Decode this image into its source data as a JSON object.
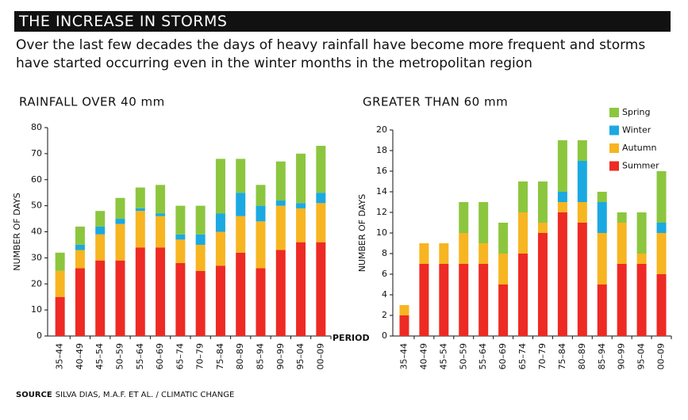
{
  "title": "THE INCREASE IN STORMS",
  "subtitle": "Over the last few decades the days of heavy rainfall have become more frequent and storms have started occurring even in the winter months in the metropolitan region",
  "source_label": "SOURCE",
  "source": "SILVA DIAS, M.A.F. ET AL.  / CLIMATIC CHANGE",
  "chart_data": [
    {
      "type": "bar",
      "stacked": true,
      "title": "RAINFALL OVER 40 mm",
      "y_label": "NUMBER OF DAYS",
      "x_label": "PERIOD",
      "categories": [
        "35–44",
        "40–49",
        "45–54",
        "50–59",
        "55–64",
        "60–69",
        "65–74",
        "70–79",
        "75–84",
        "80–89",
        "85–94",
        "90–99",
        "95–04",
        "00–09"
      ],
      "series": [
        {
          "name": "Summer",
          "color": "#ee2a24",
          "values": [
            15,
            26,
            29,
            29,
            34,
            34,
            28,
            25,
            27,
            32,
            26,
            33,
            36,
            36
          ]
        },
        {
          "name": "Autumn",
          "color": "#f7b521",
          "values": [
            10,
            7,
            10,
            14,
            14,
            12,
            9,
            10,
            13,
            14,
            18,
            17,
            13,
            15
          ]
        },
        {
          "name": "Winter",
          "color": "#1ba9e1",
          "values": [
            0,
            2,
            3,
            2,
            1,
            1,
            2,
            4,
            7,
            9,
            6,
            2,
            2,
            4
          ]
        },
        {
          "name": "Spring",
          "color": "#8cc63f",
          "values": [
            7,
            7,
            6,
            8,
            8,
            11,
            11,
            11,
            21,
            13,
            8,
            15,
            19,
            18
          ]
        }
      ],
      "ylim": [
        0,
        80
      ],
      "yticks": [
        0,
        10,
        20,
        30,
        40,
        50,
        60,
        70,
        80
      ],
      "legend": false
    },
    {
      "type": "bar",
      "stacked": true,
      "title": "GREATER THAN 60 mm",
      "y_label": "NUMBER OF DAYS",
      "categories": [
        "35–44",
        "40–49",
        "45–54",
        "50–59",
        "55–64",
        "60–69",
        "65–74",
        "70–79",
        "75–84",
        "80–89",
        "85–94",
        "90–99",
        "95–04",
        "00–09"
      ],
      "series": [
        {
          "name": "Summer",
          "color": "#ee2a24",
          "values": [
            2,
            7,
            7,
            7,
            7,
            5,
            8,
            10,
            12,
            11,
            5,
            7,
            7,
            6
          ]
        },
        {
          "name": "Autumn",
          "color": "#f7b521",
          "values": [
            1,
            2,
            2,
            3,
            2,
            3,
            4,
            1,
            1,
            2,
            5,
            4,
            1,
            4
          ]
        },
        {
          "name": "Winter",
          "color": "#1ba9e1",
          "values": [
            0,
            0,
            0,
            0,
            0,
            0,
            0,
            0,
            1,
            4,
            3,
            0,
            0,
            1
          ]
        },
        {
          "name": "Spring",
          "color": "#8cc63f",
          "values": [
            0,
            0,
            0,
            3,
            4,
            3,
            3,
            4,
            5,
            2,
            1,
            1,
            4,
            5
          ]
        }
      ],
      "ylim": [
        0,
        20
      ],
      "yticks": [
        0,
        2,
        4,
        6,
        8,
        10,
        12,
        14,
        16,
        18,
        20
      ],
      "legend": true
    }
  ]
}
